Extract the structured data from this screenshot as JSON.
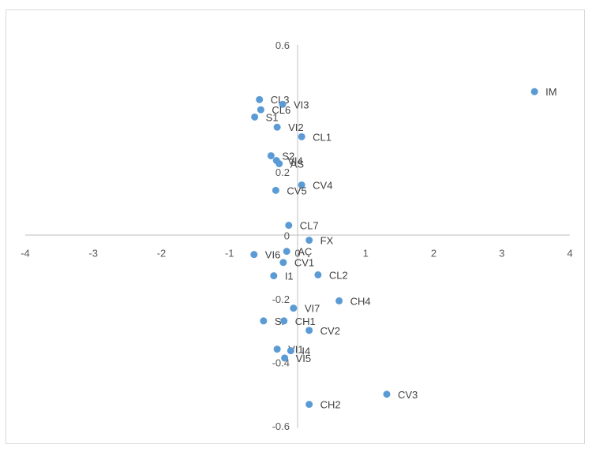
{
  "chart_data": {
    "type": "scatter",
    "title": "",
    "xlabel": "",
    "ylabel": "",
    "xlim": [
      -4,
      4
    ],
    "ylim": [
      -0.6,
      0.6
    ],
    "x_ticks": [
      "-4",
      "-3",
      "-2",
      "-1",
      "0",
      "1",
      "2",
      "3",
      "4"
    ],
    "y_ticks": [
      "0.6",
      "0.2",
      "0",
      "-0.2",
      "-0.4",
      "-0.6"
    ],
    "grid": false,
    "legend": "none",
    "marker_color": "#5b9bd5",
    "points": [
      {
        "label": "IM",
        "x": 3.48,
        "y": 0.453
      },
      {
        "label": "CL3",
        "x": -0.56,
        "y": 0.428
      },
      {
        "label": "VI3",
        "x": -0.22,
        "y": 0.413
      },
      {
        "label": "CL6",
        "x": -0.54,
        "y": 0.396
      },
      {
        "label": "S1",
        "x": -0.63,
        "y": 0.373
      },
      {
        "label": "VI2",
        "x": -0.3,
        "y": 0.341
      },
      {
        "label": "CL1",
        "x": 0.06,
        "y": 0.311
      },
      {
        "label": "S2",
        "x": -0.39,
        "y": 0.251
      },
      {
        "label": "VI4",
        "x": -0.31,
        "y": 0.236
      },
      {
        "label": "AS",
        "x": -0.27,
        "y": 0.226
      },
      {
        "label": "CV4",
        "x": 0.06,
        "y": 0.159
      },
      {
        "label": "CV5",
        "x": -0.32,
        "y": 0.142
      },
      {
        "label": "CL7",
        "x": -0.13,
        "y": 0.032
      },
      {
        "label": "FX",
        "x": 0.17,
        "y": -0.015
      },
      {
        "label": "VI6",
        "x": -0.64,
        "y": -0.06
      },
      {
        "label": "AÇ",
        "x": -0.16,
        "y": -0.05
      },
      {
        "label": "CV1",
        "x": -0.21,
        "y": -0.085
      },
      {
        "label": "I1",
        "x": -0.35,
        "y": -0.127
      },
      {
        "label": "CL2",
        "x": 0.3,
        "y": -0.124
      },
      {
        "label": "CH4",
        "x": 0.61,
        "y": -0.206
      },
      {
        "label": "VI7",
        "x": -0.06,
        "y": -0.229
      },
      {
        "label": "SI",
        "x": -0.5,
        "y": -0.269
      },
      {
        "label": "CH1",
        "x": -0.2,
        "y": -0.269
      },
      {
        "label": "CV2",
        "x": 0.17,
        "y": -0.299
      },
      {
        "label": "VI1",
        "x": -0.3,
        "y": -0.358
      },
      {
        "label": "I4",
        "x": -0.1,
        "y": -0.363
      },
      {
        "label": "VI5",
        "x": -0.19,
        "y": -0.386
      },
      {
        "label": "CV3",
        "x": 1.31,
        "y": -0.5
      },
      {
        "label": "CH2",
        "x": 0.17,
        "y": -0.532
      }
    ]
  }
}
